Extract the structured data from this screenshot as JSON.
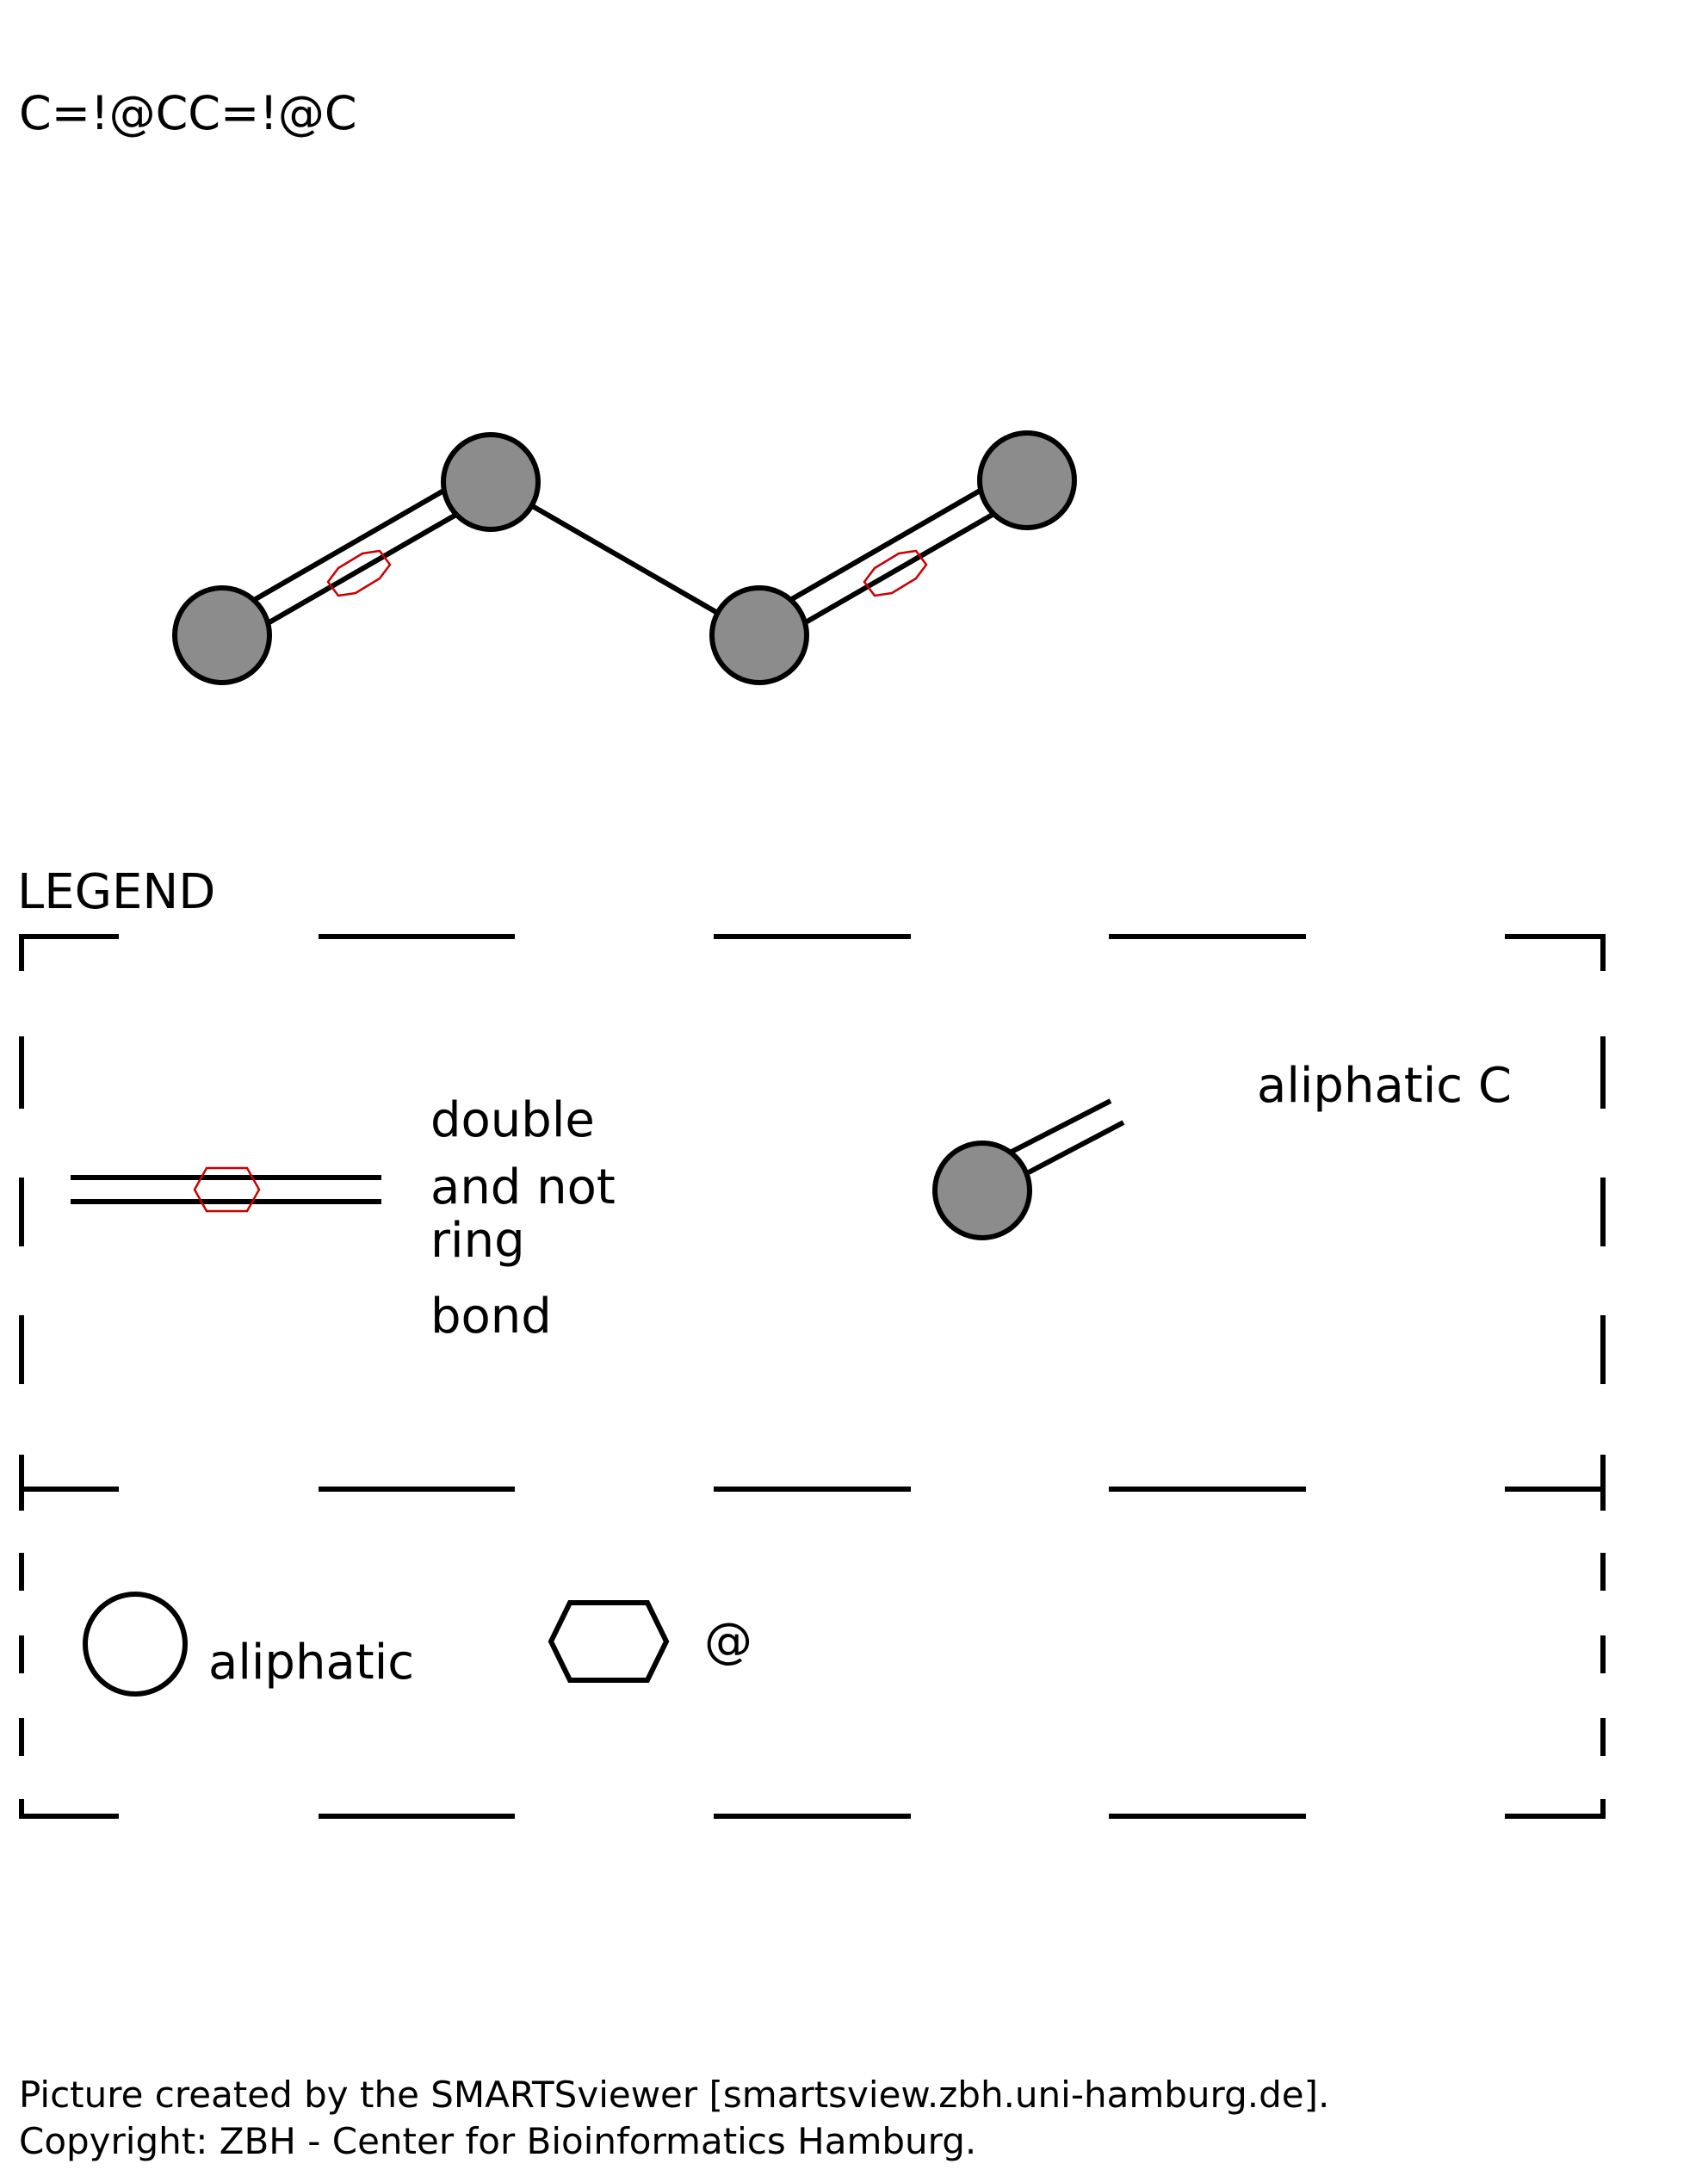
{
  "smarts": "C=!@CC=!@C",
  "legend": {
    "title": "LEGEND",
    "bond_label_lines": [
      "double",
      "and not",
      "ring",
      "bond"
    ],
    "atom_label": "aliphatic C",
    "circle_label": "aliphatic",
    "hexagon_label": "@"
  },
  "footer": {
    "line1": "Picture created by the SMARTSviewer [smartsview.zbh.uni-hamburg.de].",
    "line2": "Copyright: ZBH - Center for Bioinformatics Hamburg."
  },
  "colors": {
    "atom_fill": "#8c8c8c",
    "ring_marker": "#cc0000",
    "line": "#000000"
  }
}
